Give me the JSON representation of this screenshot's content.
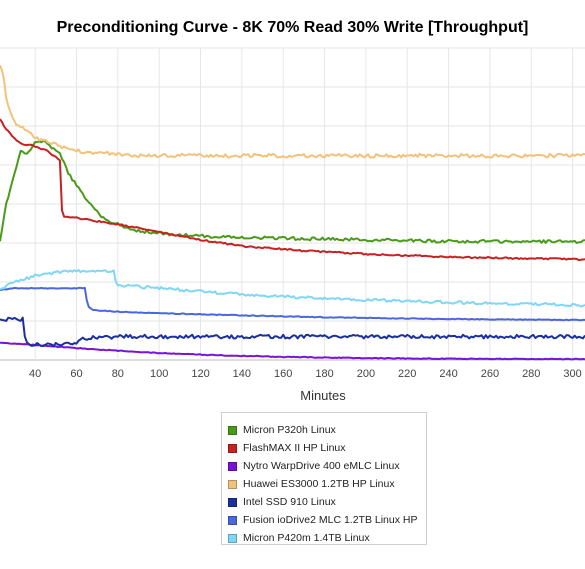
{
  "chart_data": {
    "type": "line",
    "title": "Preconditioning Curve - 8K 70% Read 30% Write [Throughput]",
    "xlabel": "Minutes",
    "ylabel": "",
    "x_ticks": [
      40,
      60,
      80,
      100,
      120,
      140,
      160,
      180,
      200,
      220,
      240,
      260,
      280,
      300
    ],
    "xlim": [
      23,
      306
    ],
    "ylim": [
      0,
      100
    ],
    "grid": true,
    "legend_position": "bottom",
    "series": [
      {
        "name": "Micron P320h Linux",
        "color": "#4a9a1a",
        "x": [
          23,
          26,
          30,
          33,
          36,
          38,
          40,
          44,
          48,
          52,
          56,
          60,
          64,
          68,
          72,
          78,
          85,
          95,
          110,
          130,
          160,
          200,
          240,
          280,
          306
        ],
        "y": [
          38,
          50,
          60,
          67,
          66,
          68,
          70,
          70,
          68,
          66,
          60,
          56,
          52,
          49,
          46,
          44,
          42,
          41,
          40,
          39.5,
          39,
          38.5,
          38,
          38,
          38
        ]
      },
      {
        "name": "FlashMAX II HP Linux",
        "color": "#c62222",
        "x": [
          23,
          26,
          30,
          34,
          38,
          42,
          46,
          50,
          52,
          53,
          54,
          60,
          70,
          80,
          100,
          120,
          140,
          170,
          200,
          240,
          280,
          306
        ],
        "y": [
          77,
          74,
          71,
          69,
          69,
          68,
          67,
          65,
          64,
          48,
          46,
          45.5,
          44.5,
          43.5,
          41,
          38.5,
          36.5,
          35,
          34,
          33,
          32.5,
          32.2
        ]
      },
      {
        "name": "Nytro WarpDrive 400 eMLC Linux",
        "color": "#7a12d8",
        "x": [
          23,
          40,
          60,
          80,
          100,
          130,
          160,
          200,
          240,
          280,
          306
        ],
        "y": [
          5.5,
          4.8,
          3.8,
          3.0,
          2.2,
          1.5,
          1.0,
          0.6,
          0.4,
          0.3,
          0.3
        ]
      },
      {
        "name": "Huawei ES3000 1.2TB HP Linux",
        "color": "#f2c27a",
        "x": [
          23,
          24,
          25,
          26,
          28,
          30,
          35,
          40,
          45,
          50,
          55,
          60,
          70,
          80,
          90,
          100,
          120,
          150,
          200,
          250,
          306
        ],
        "y": [
          95,
          93,
          90,
          84,
          79,
          76,
          74,
          71,
          70,
          69,
          68,
          67,
          66.5,
          66,
          65.5,
          65.5,
          65.5,
          65.5,
          65.5,
          65.5,
          65.5
        ]
      },
      {
        "name": "Intel SSD 910 Linux",
        "color": "#1c2fa0",
        "x": [
          23,
          30,
          34,
          35,
          36,
          37,
          40,
          45,
          50,
          55,
          60,
          61,
          62,
          70,
          80,
          100,
          150,
          200,
          250,
          306
        ],
        "y": [
          13,
          13,
          13,
          7,
          6,
          5,
          5,
          5,
          5,
          5,
          5,
          6,
          7,
          7.2,
          7.5,
          7.5,
          7.5,
          7.5,
          7.5,
          7.5
        ]
      },
      {
        "name": "Fusion ioDrive2 MLC 1.2TB Linux HP",
        "color": "#4a67dd",
        "x": [
          23,
          30,
          40,
          50,
          60,
          64,
          65,
          66,
          67,
          68,
          80,
          100,
          140,
          180,
          220,
          260,
          306
        ],
        "y": [
          22.5,
          23,
          23,
          23,
          23,
          23,
          19,
          17,
          16.5,
          16,
          15.5,
          15,
          14.3,
          13.7,
          13.3,
          13,
          12.8
        ]
      },
      {
        "name": "Micron P420m 1.4TB Linux",
        "color": "#7fd7f5",
        "x": [
          23,
          30,
          40,
          50,
          60,
          70,
          78,
          79,
          80,
          90,
          100,
          120,
          140,
          160,
          180,
          200,
          240,
          280,
          306
        ],
        "y": [
          22.5,
          25,
          27,
          28,
          28.5,
          28.5,
          28.5,
          25,
          24,
          23.5,
          23,
          22,
          21,
          20.3,
          19.8,
          19.3,
          18.5,
          18,
          17.5
        ]
      }
    ]
  }
}
